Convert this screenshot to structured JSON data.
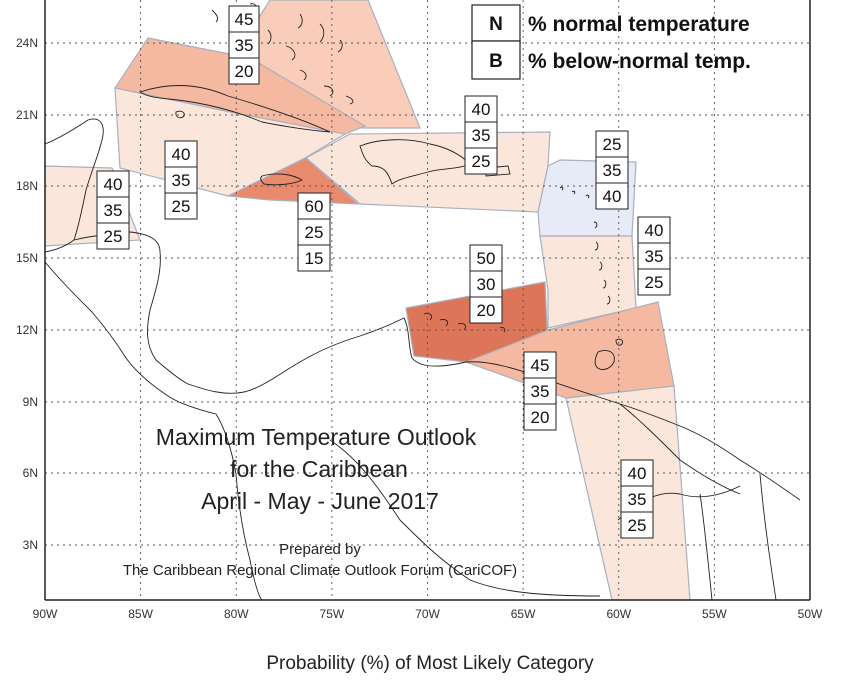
{
  "map": {
    "title_lines": [
      "Maximum Temperature Outlook",
      "for the Caribbean",
      "April - May - June 2017"
    ],
    "prepared_by": "Prepared by",
    "organization": "The Caribbean Regional Climate Outlook Forum (CariCOF)",
    "caption": "Probability (%) of Most Likely Category",
    "lon_ticks": [
      "90W",
      "85W",
      "80W",
      "75W",
      "70W",
      "65W",
      "60W",
      "55W",
      "50W"
    ],
    "lat_ticks": [
      "24N",
      "21N",
      "18N",
      "15N",
      "12N",
      "9N",
      "6N",
      "3N"
    ]
  },
  "legend": {
    "items": [
      {
        "key": "N",
        "label": "% normal temperature"
      },
      {
        "key": "B",
        "label": "% below-normal temp."
      }
    ]
  },
  "colors": {
    "light_orange": "#fbe6dc",
    "medium_orange": "#f5b8a0",
    "strong_orange": "#e98a6c",
    "dark_orange": "#dd7558",
    "light_blue": "#e6ebf7",
    "zone_stroke": "#a8b1bf"
  },
  "regions": [
    {
      "name": "bahamas",
      "above": "45",
      "normal": "35",
      "below": "20"
    },
    {
      "name": "cuba",
      "above": "40",
      "normal": "35",
      "below": "25"
    },
    {
      "name": "belize-yucatan",
      "above": "40",
      "normal": "35",
      "below": "25"
    },
    {
      "name": "jamaica",
      "above": "60",
      "normal": "25",
      "below": "15"
    },
    {
      "name": "hispaniola-puerto-rico",
      "above": "40",
      "normal": "35",
      "below": "25"
    },
    {
      "name": "leeward-islands",
      "above": "25",
      "normal": "35",
      "below": "40"
    },
    {
      "name": "windward-islands",
      "above": "40",
      "normal": "35",
      "below": "25"
    },
    {
      "name": "abc-islands",
      "above": "50",
      "normal": "30",
      "below": "20"
    },
    {
      "name": "trinidad-tobago",
      "above": "45",
      "normal": "35",
      "below": "20"
    },
    {
      "name": "guianas",
      "above": "40",
      "normal": "35",
      "below": "25"
    }
  ]
}
